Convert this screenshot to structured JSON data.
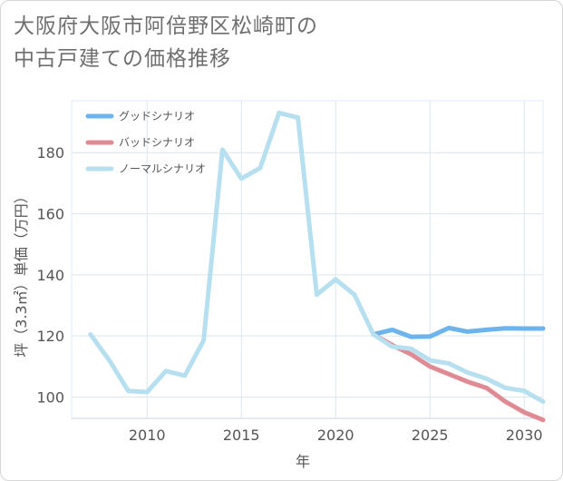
{
  "title": {
    "line1": "大阪府大阪市阿倍野区松崎町の",
    "line2": "中古戸建ての価格推移"
  },
  "chart_data": {
    "type": "line",
    "title": "大阪府大阪市阿倍野区松崎町の中古戸建ての価格推移",
    "xlabel": "年",
    "ylabel": "坪（3.3㎡）単価（万円）",
    "xlim": [
      2006,
      2031
    ],
    "ylim": [
      93,
      197
    ],
    "xticks": [
      2010,
      2015,
      2020,
      2025,
      2030
    ],
    "yticks": [
      100,
      120,
      140,
      160,
      180
    ],
    "legend_position": "top-left",
    "series": [
      {
        "name": "グッドシナリオ",
        "color": "#6cb4ee",
        "x": [
          2022,
          2023,
          2024,
          2025,
          2026,
          2027,
          2028,
          2029,
          2030,
          2031
        ],
        "values": [
          120.5,
          122.0,
          119.7,
          119.8,
          122.6,
          121.4,
          122.0,
          122.5,
          122.4,
          122.4
        ]
      },
      {
        "name": "バッドシナリオ",
        "color": "#e08a94",
        "x": [
          2022,
          2023,
          2024,
          2025,
          2026,
          2027,
          2028,
          2029,
          2030,
          2031
        ],
        "values": [
          120.5,
          117.0,
          114.0,
          110.0,
          107.5,
          105.0,
          103.0,
          98.5,
          95.0,
          92.5
        ]
      },
      {
        "name": "ノーマルシナリオ",
        "color": "#b6dff0",
        "x": [
          2007,
          2008,
          2009,
          2010,
          2011,
          2012,
          2013,
          2014,
          2015,
          2016,
          2017,
          2018,
          2019,
          2020,
          2021,
          2022,
          2023,
          2024,
          2025,
          2026,
          2027,
          2028,
          2029,
          2030,
          2031
        ],
        "values": [
          120.5,
          112.0,
          102.0,
          101.6,
          108.5,
          107.0,
          118.5,
          181.0,
          171.5,
          175.0,
          193.0,
          191.5,
          133.5,
          138.5,
          133.5,
          120.5,
          116.5,
          115.8,
          112.0,
          111.0,
          108.0,
          106.0,
          103.0,
          102.0,
          98.5
        ]
      }
    ]
  }
}
